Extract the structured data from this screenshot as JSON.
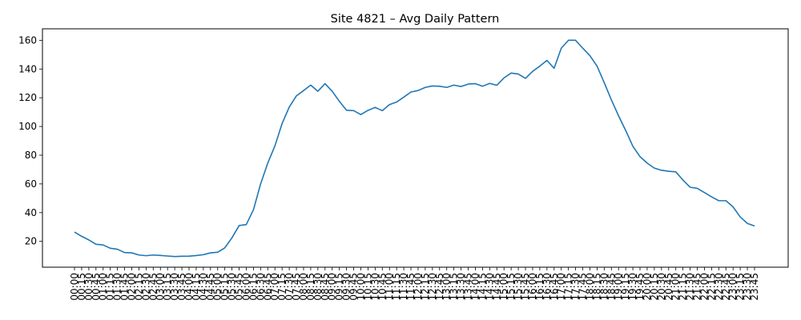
{
  "chart_data": {
    "type": "line",
    "title": "Site 4821 – Avg Daily Pattern",
    "xlabel": "",
    "ylabel": "",
    "ylim": [
      2,
      168
    ],
    "yticks": [
      20,
      40,
      60,
      80,
      100,
      120,
      140,
      160
    ],
    "grid": false,
    "legend": "none",
    "series": [
      {
        "color": "#1f77b4",
        "x": [
          "00:00",
          "00:15",
          "00:30",
          "00:45",
          "01:00",
          "01:15",
          "01:30",
          "01:45",
          "02:00",
          "02:15",
          "02:30",
          "02:45",
          "03:00",
          "03:15",
          "03:30",
          "03:45",
          "04:00",
          "04:15",
          "04:30",
          "04:45",
          "05:00",
          "05:15",
          "05:30",
          "05:45",
          "06:00",
          "06:15",
          "06:30",
          "06:45",
          "07:00",
          "07:15",
          "07:30",
          "07:45",
          "08:00",
          "08:15",
          "08:30",
          "08:45",
          "09:00",
          "09:15",
          "09:30",
          "09:45",
          "10:00",
          "10:15",
          "10:30",
          "10:45",
          "11:00",
          "11:15",
          "11:30",
          "11:45",
          "12:00",
          "12:15",
          "12:30",
          "12:45",
          "13:00",
          "13:15",
          "13:30",
          "13:45",
          "14:00",
          "14:15",
          "14:30",
          "14:45",
          "15:00",
          "15:15",
          "15:30",
          "15:45",
          "16:00",
          "16:15",
          "16:30",
          "16:45",
          "17:00",
          "17:15",
          "17:30",
          "17:45",
          "18:00",
          "18:15",
          "18:30",
          "18:45",
          "19:00",
          "19:15",
          "19:30",
          "19:45",
          "20:00",
          "20:15",
          "20:30",
          "20:45",
          "21:00",
          "21:15",
          "21:30",
          "21:45",
          "22:00",
          "22:15",
          "22:30",
          "22:45",
          "23:00",
          "23:15",
          "23:30",
          "23:45"
        ],
        "values": [
          26.5,
          23.5,
          21,
          18,
          17.5,
          15.2,
          14.5,
          12.2,
          12,
          10.5,
          10,
          10.5,
          10.2,
          9.8,
          9.4,
          9.6,
          9.7,
          10.1,
          10.7,
          12,
          12.4,
          15.5,
          22.5,
          31,
          31.7,
          42,
          60,
          74.5,
          86.5,
          102,
          113.5,
          121.3,
          125,
          128.8,
          124.5,
          129.8,
          124.5,
          117.5,
          111.3,
          111,
          108.3,
          111.2,
          113.3,
          111,
          115.2,
          117,
          120.4,
          124,
          125,
          127.2,
          128.2,
          128,
          127.2,
          128.8,
          127.8,
          129.5,
          129.8,
          128,
          130,
          128.7,
          133.8,
          137.2,
          136.5,
          133.5,
          138.4,
          142,
          146,
          140.5,
          154.5,
          160,
          160,
          154.5,
          149.3,
          142,
          130.5,
          118.5,
          107.5,
          97.2,
          86.2,
          79,
          74.5,
          71,
          69.5,
          68.8,
          68.4,
          62.7,
          57.7,
          56.9,
          54,
          51,
          48.3,
          48.3,
          44,
          37,
          32.5,
          30.7
        ]
      }
    ]
  }
}
